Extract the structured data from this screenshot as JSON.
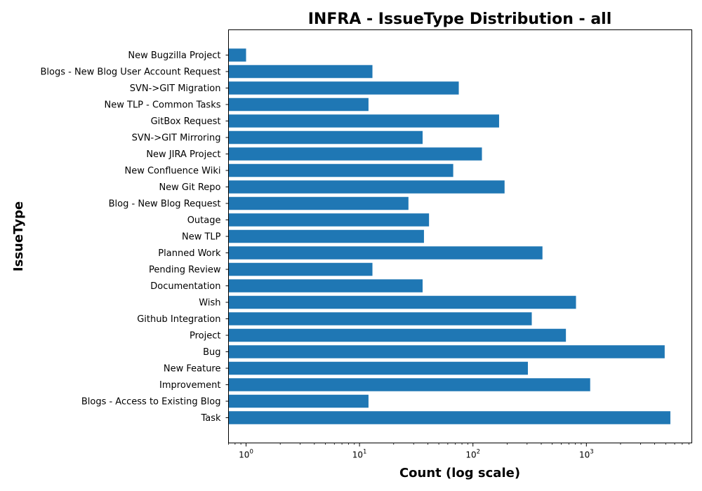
{
  "chart_data": {
    "type": "bar",
    "orientation": "horizontal",
    "title": "INFRA - IssueType Distribution - all",
    "xlabel": "Count (log scale)",
    "ylabel": "IssueType",
    "xscale": "log",
    "xlim": [
      0.7,
      8500
    ],
    "xticks": [
      {
        "value": 1,
        "base": "10",
        "exp": "0"
      },
      {
        "value": 10,
        "base": "10",
        "exp": "1"
      },
      {
        "value": 100,
        "base": "10",
        "exp": "2"
      },
      {
        "value": 1000,
        "base": "10",
        "exp": "3"
      }
    ],
    "color": "#1f77b4",
    "grid": false,
    "categories": [
      "New Bugzilla Project",
      "Blogs - New Blog User Account Request",
      "SVN->GIT Migration",
      "New TLP - Common Tasks",
      "GitBox Request",
      "SVN->GIT Mirroring",
      "New JIRA Project",
      "New Confluence Wiki",
      "New Git Repo",
      "Blog - New Blog Request",
      "Outage",
      "New TLP ",
      "Planned Work",
      "Pending Review",
      "Documentation",
      "Wish",
      "Github Integration",
      "Project",
      "Bug",
      "New Feature",
      "Improvement",
      "Blogs - Access to Existing Blog",
      "Task"
    ],
    "values": [
      1,
      13,
      75,
      12,
      170,
      36,
      120,
      67,
      190,
      27,
      41,
      37,
      410,
      13,
      36,
      810,
      330,
      660,
      4900,
      305,
      1080,
      12,
      5500
    ]
  }
}
